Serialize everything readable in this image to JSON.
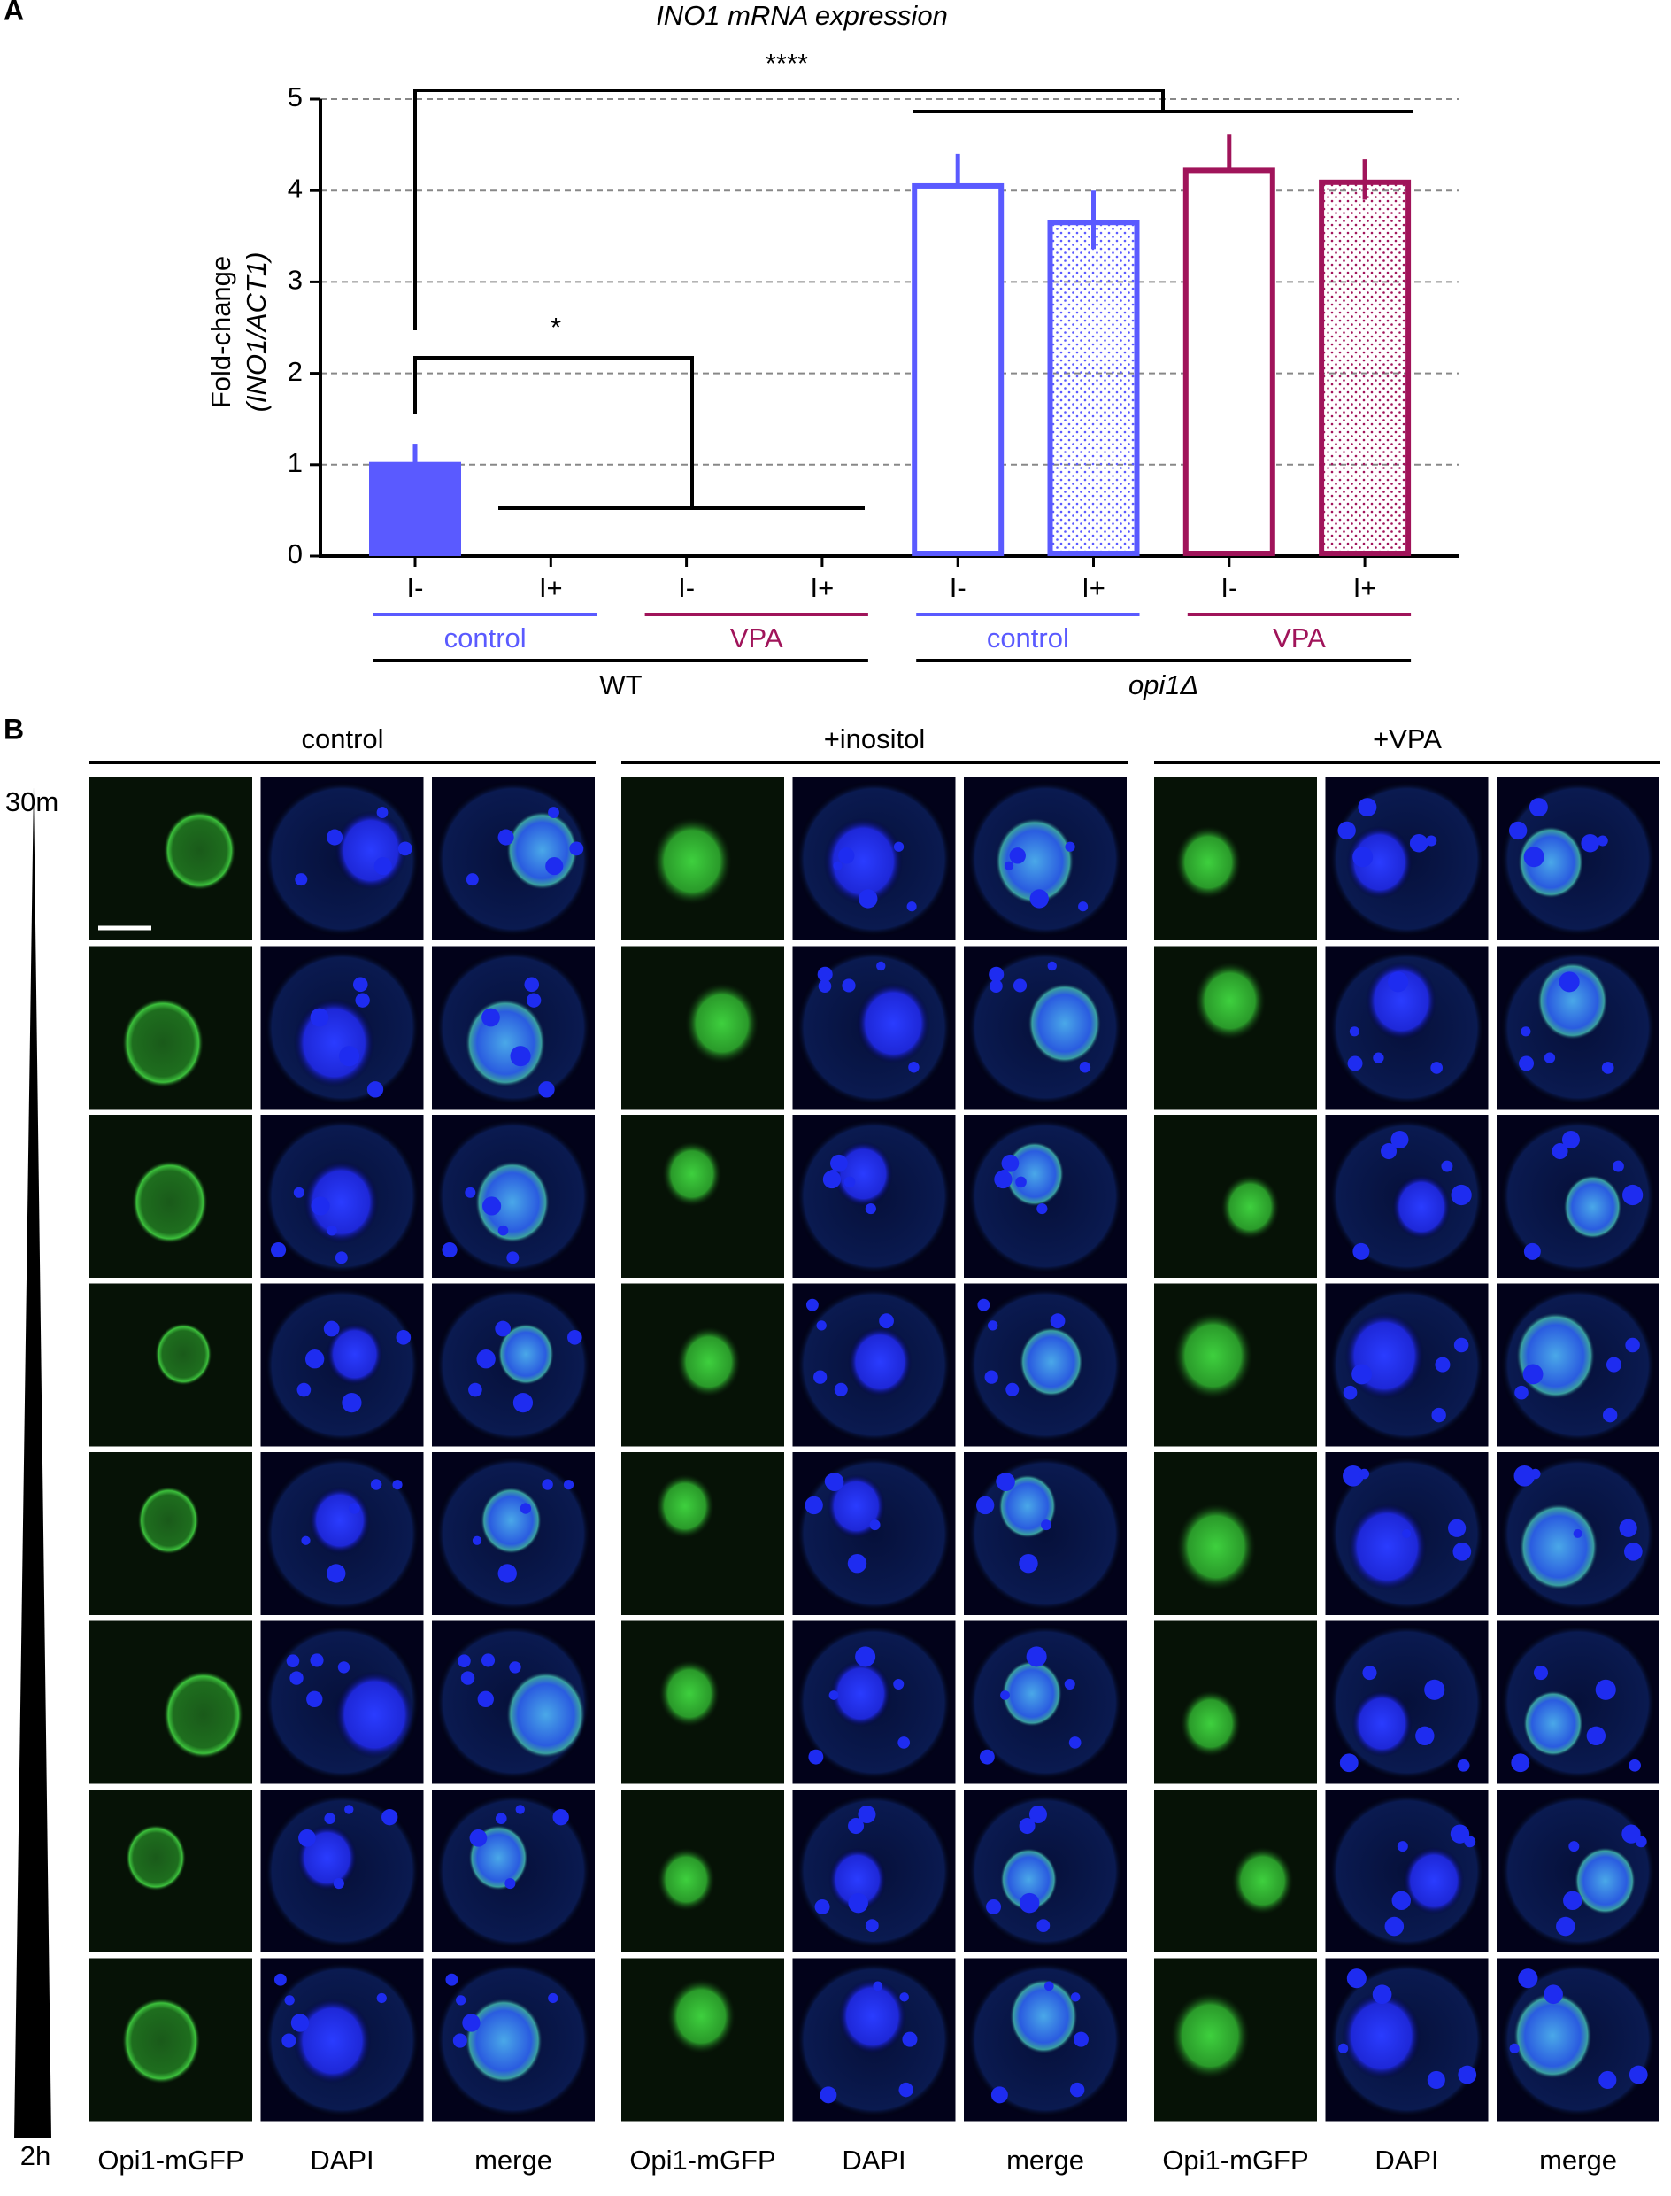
{
  "panel_a_label": "A",
  "chart_data": {
    "type": "bar",
    "title": "INO1 mRNA expression",
    "ylabel": "Fold-change",
    "ylabel2": "(INO1/ACT1)",
    "categories": [
      "I-",
      "I+",
      "I-",
      "I+",
      "I-",
      "I+",
      "I-",
      "I+"
    ],
    "values": [
      1.03,
      0,
      0,
      0,
      4.08,
      3.68,
      4.25,
      4.12
    ],
    "errors": [
      0.2,
      null,
      null,
      null,
      0.32,
      0.32,
      0.37,
      0.22
    ],
    "colors": [
      "#5a5aff",
      "#5a5aff",
      "#a0145a",
      "#a0145a",
      "#5a5aff",
      "#5a5aff",
      "#a0145a",
      "#a0145a"
    ],
    "fills": [
      "solid",
      "solid",
      "solid",
      "solid",
      "open",
      "dotted",
      "open",
      "dotted"
    ],
    "groups": [
      {
        "label": "control",
        "color": "#5a5aff",
        "categories": [
          0,
          1
        ]
      },
      {
        "label": "VPA",
        "color": "#a0145a",
        "categories": [
          2,
          3
        ]
      },
      {
        "label": "control",
        "color": "#5a5aff",
        "categories": [
          4,
          5
        ]
      },
      {
        "label": "VPA",
        "color": "#a0145a",
        "categories": [
          6,
          7
        ]
      }
    ],
    "strains": [
      {
        "label": "WT",
        "categories": [
          0,
          1,
          2,
          3
        ]
      },
      {
        "label": "opi1Δ",
        "categories": [
          4,
          5,
          6,
          7
        ]
      }
    ],
    "significance": [
      "****",
      "*"
    ],
    "ylim": [
      0,
      5
    ],
    "yticks": [
      0,
      1,
      2,
      3,
      4,
      5
    ],
    "grid": true
  },
  "panel_b": {
    "label": "B",
    "columns": [
      "control",
      "+inositol",
      "+VPA"
    ],
    "time_start": "30m",
    "time_end": "2h",
    "channels": [
      "Opi1-mGFP",
      "DAPI",
      "merge"
    ]
  }
}
